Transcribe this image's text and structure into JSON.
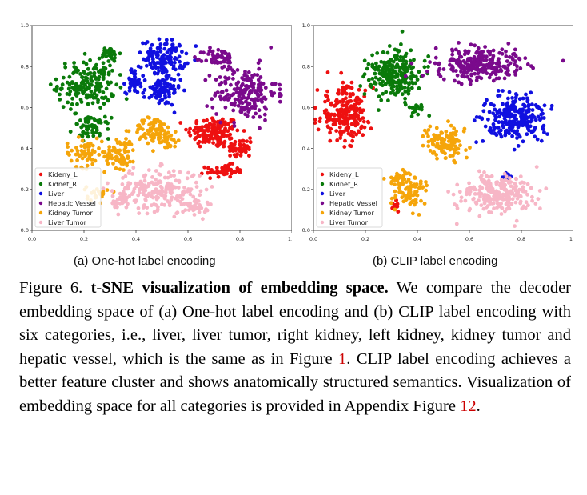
{
  "figure": {
    "subcaptions": [
      "(a) One-hot label encoding",
      "(b) CLIP label encoding"
    ],
    "caption": {
      "label": "Figure 6.",
      "title": "t-SNE visualization of embedding space.",
      "body": "We compare the decoder embedding space of (a) One-hot label encoding and (b) CLIP label encoding with six categories, i.e., liver, liver tumor, right kidney, left kidney, kidney tumor and hepatic vessel, which is the same as in Figure ",
      "ref1": "1",
      "body2": ". CLIP label encoding achieves a better feature cluster and shows anatomically structured semantics. Visualization of embedding space for all categories is provided in Appendix Figure ",
      "ref2": "12",
      "body3": "."
    }
  },
  "colors": {
    "Kideny_L": "#ee1111",
    "Kidnet_R": "#0a7a0a",
    "Liver": "#1010e0",
    "Hepatic Vessel": "#7a0a8c",
    "Kidney Tumor": "#f5a50a",
    "Liver Tumor": "#f7b6c6"
  },
  "chart_data": [
    {
      "type": "scatter",
      "xlim": [
        0,
        1
      ],
      "ylim": [
        0,
        1
      ],
      "xticks": [
        "0.0",
        "0.2",
        "0.4",
        "0.6",
        "0.8",
        "1.0"
      ],
      "yticks": [
        "0.0",
        "0.2",
        "0.4",
        "0.6",
        "0.8",
        "1.0"
      ],
      "legend_position": "lower-left",
      "series": [
        {
          "name": "Kideny_L",
          "clusters": [
            {
              "cx": 0.7,
              "cy": 0.48,
              "rx": 0.1,
              "ry": 0.08,
              "n": 150
            },
            {
              "cx": 0.8,
              "cy": 0.4,
              "rx": 0.05,
              "ry": 0.05,
              "n": 50
            },
            {
              "cx": 0.74,
              "cy": 0.29,
              "rx": 0.07,
              "ry": 0.03,
              "n": 50
            }
          ]
        },
        {
          "name": "Kidnet_R",
          "clusters": [
            {
              "cx": 0.21,
              "cy": 0.71,
              "rx": 0.11,
              "ry": 0.12,
              "n": 180
            },
            {
              "cx": 0.23,
              "cy": 0.5,
              "rx": 0.07,
              "ry": 0.05,
              "n": 60
            },
            {
              "cx": 0.3,
              "cy": 0.86,
              "rx": 0.04,
              "ry": 0.04,
              "n": 30
            }
          ]
        },
        {
          "name": "Liver",
          "clusters": [
            {
              "cx": 0.51,
              "cy": 0.84,
              "rx": 0.08,
              "ry": 0.09,
              "n": 130
            },
            {
              "cx": 0.5,
              "cy": 0.68,
              "rx": 0.07,
              "ry": 0.07,
              "n": 80
            },
            {
              "cx": 0.39,
              "cy": 0.73,
              "rx": 0.03,
              "ry": 0.06,
              "n": 40
            }
          ]
        },
        {
          "name": "Hepatic Vessel",
          "clusters": [
            {
              "cx": 0.82,
              "cy": 0.67,
              "rx": 0.12,
              "ry": 0.13,
              "n": 200
            },
            {
              "cx": 0.72,
              "cy": 0.84,
              "rx": 0.06,
              "ry": 0.05,
              "n": 60
            }
          ]
        },
        {
          "name": "Kidney Tumor",
          "clusters": [
            {
              "cx": 0.47,
              "cy": 0.49,
              "rx": 0.08,
              "ry": 0.06,
              "n": 80
            },
            {
              "cx": 0.34,
              "cy": 0.38,
              "rx": 0.06,
              "ry": 0.08,
              "n": 70
            },
            {
              "cx": 0.2,
              "cy": 0.38,
              "rx": 0.07,
              "ry": 0.07,
              "n": 60
            },
            {
              "cx": 0.25,
              "cy": 0.18,
              "rx": 0.04,
              "ry": 0.04,
              "n": 25
            },
            {
              "cx": 0.53,
              "cy": 0.43,
              "rx": 0.04,
              "ry": 0.04,
              "n": 25
            }
          ]
        },
        {
          "name": "Liver Tumor",
          "clusters": [
            {
              "cx": 0.48,
              "cy": 0.2,
              "rx": 0.17,
              "ry": 0.1,
              "n": 200
            },
            {
              "cx": 0.63,
              "cy": 0.12,
              "rx": 0.05,
              "ry": 0.04,
              "n": 40
            },
            {
              "cx": 0.34,
              "cy": 0.14,
              "rx": 0.04,
              "ry": 0.04,
              "n": 30
            }
          ]
        }
      ]
    },
    {
      "type": "scatter",
      "xlim": [
        0,
        1
      ],
      "ylim": [
        0,
        1
      ],
      "xticks": [
        "0.0",
        "0.2",
        "0.4",
        "0.6",
        "0.8",
        "1.0"
      ],
      "yticks": [
        "0.0",
        "0.2",
        "0.4",
        "0.6",
        "0.8",
        "1.0"
      ],
      "legend_position": "lower-left",
      "series": [
        {
          "name": "Kideny_L",
          "clusters": [
            {
              "cx": 0.12,
              "cy": 0.57,
              "rx": 0.1,
              "ry": 0.13,
              "n": 230
            },
            {
              "cx": 0.32,
              "cy": 0.12,
              "rx": 0.02,
              "ry": 0.03,
              "n": 10
            }
          ]
        },
        {
          "name": "Kidnet_R",
          "clusters": [
            {
              "cx": 0.31,
              "cy": 0.76,
              "rx": 0.1,
              "ry": 0.12,
              "n": 230
            },
            {
              "cx": 0.4,
              "cy": 0.6,
              "rx": 0.03,
              "ry": 0.03,
              "n": 15
            }
          ]
        },
        {
          "name": "Liver",
          "clusters": [
            {
              "cx": 0.78,
              "cy": 0.55,
              "rx": 0.12,
              "ry": 0.11,
              "n": 250
            },
            {
              "cx": 0.74,
              "cy": 0.27,
              "rx": 0.02,
              "ry": 0.02,
              "n": 10
            }
          ]
        },
        {
          "name": "Hepatic Vessel",
          "clusters": [
            {
              "cx": 0.64,
              "cy": 0.81,
              "rx": 0.17,
              "ry": 0.08,
              "n": 250
            }
          ]
        },
        {
          "name": "Kidney Tumor",
          "clusters": [
            {
              "cx": 0.5,
              "cy": 0.43,
              "rx": 0.08,
              "ry": 0.08,
              "n": 110
            },
            {
              "cx": 0.37,
              "cy": 0.19,
              "rx": 0.06,
              "ry": 0.07,
              "n": 70
            },
            {
              "cx": 0.33,
              "cy": 0.25,
              "rx": 0.04,
              "ry": 0.04,
              "n": 30
            }
          ]
        },
        {
          "name": "Liver Tumor",
          "clusters": [
            {
              "cx": 0.7,
              "cy": 0.18,
              "rx": 0.15,
              "ry": 0.1,
              "n": 230
            }
          ]
        }
      ]
    }
  ]
}
